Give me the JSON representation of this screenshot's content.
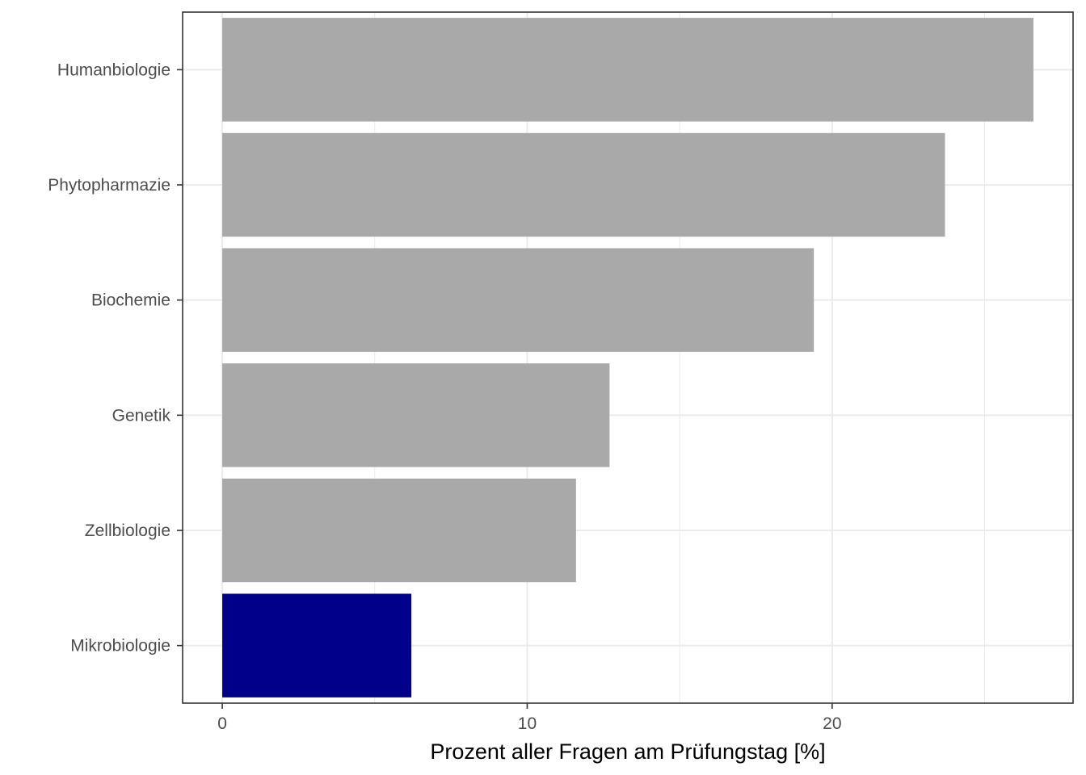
{
  "chart_data": {
    "type": "bar",
    "orientation": "horizontal",
    "title": "",
    "xlabel": "Prozent aller Fragen am Prüfungstag [%]",
    "ylabel": "",
    "xlim": [
      -1.3,
      27.9
    ],
    "x_ticks": [
      0,
      10,
      20
    ],
    "x_tick_labels": [
      "0",
      "10",
      "20"
    ],
    "grid": true,
    "legend": "none",
    "categories": [
      "Humanbiologie",
      "Phytopharmazie",
      "Biochemie",
      "Genetik",
      "Zellbiologie",
      "Mikrobiologie"
    ],
    "values": [
      26.6,
      23.7,
      19.4,
      12.7,
      11.6,
      6.2
    ],
    "colors": [
      "#A9A9A9",
      "#A9A9A9",
      "#A9A9A9",
      "#A9A9A9",
      "#A9A9A9",
      "#00008B"
    ]
  }
}
